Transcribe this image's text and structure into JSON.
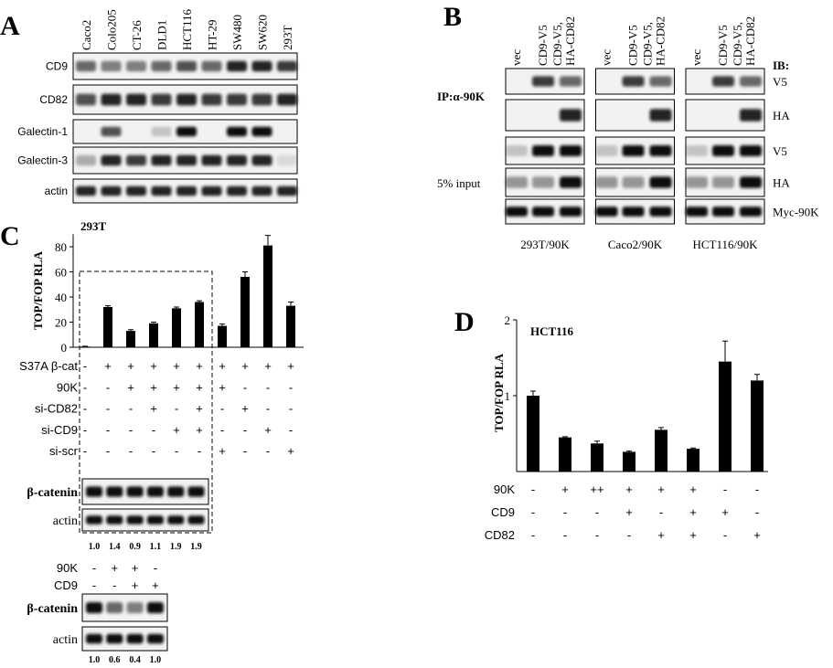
{
  "panel_a": {
    "label": "A",
    "lanes": [
      "Caco2",
      "Colo205",
      "CT-26",
      "DLD1",
      "HCT116",
      "HT-29",
      "SW480",
      "SW620",
      "293T"
    ],
    "rows": [
      "CD9",
      "CD82",
      "Galectin-1",
      "Galectin-3",
      "actin"
    ]
  },
  "panel_b": {
    "label": "B",
    "ib_label": "IB:",
    "ip_label": "IP:α-90K",
    "input_label": "5% input",
    "lanes": [
      [
        "vec"
      ],
      [
        "CD9-V5"
      ],
      [
        "CD9-V5,",
        "HA-CD82"
      ]
    ],
    "blots": [
      "V5",
      "HA",
      "V5",
      "HA",
      "Myc-90K"
    ],
    "groups": [
      "293T/90K",
      "Caco2/90K",
      "HCT116/90K"
    ]
  },
  "chart_data": [
    {
      "type": "bar",
      "panel_label": "C",
      "title": "293T",
      "y_label": "TOP/FOP RLA",
      "color": "#000000",
      "values": [
        0.5,
        32,
        13,
        19,
        31,
        36,
        17,
        56,
        81,
        33
      ],
      "errors": [
        0.3,
        1,
        1,
        1,
        1,
        1,
        1.5,
        4,
        8,
        3
      ],
      "ylim": [
        0,
        90
      ],
      "yticks": [
        0,
        20,
        40,
        60,
        80
      ],
      "conditions": [
        {
          "name": "S37A β-cat",
          "values": [
            "-",
            "+",
            "+",
            "+",
            "+",
            "+",
            "+",
            "+",
            "+",
            "+"
          ]
        },
        {
          "name": "90K",
          "values": [
            "-",
            "-",
            "+",
            "+",
            "+",
            "+",
            "+",
            "-",
            "-",
            "-"
          ]
        },
        {
          "name": "si-CD82",
          "values": [
            "-",
            "-",
            "-",
            "+",
            "-",
            "+",
            "-",
            "+",
            "-",
            "-"
          ]
        },
        {
          "name": "si-CD9",
          "values": [
            "-",
            "-",
            "-",
            "-",
            "+",
            "+",
            "-",
            "-",
            "+",
            "-"
          ]
        },
        {
          "name": "si-scr",
          "values": [
            "-",
            "-",
            "-",
            "-",
            "-",
            "-",
            "+",
            "-",
            "-",
            "+"
          ]
        }
      ]
    },
    {
      "type": "bar",
      "panel_label": "D",
      "title": "HCT116",
      "y_label": "TOP/FOP RLA",
      "color": "#000000",
      "values": [
        1.0,
        0.45,
        0.37,
        0.26,
        0.55,
        0.3,
        1.45,
        1.2
      ],
      "errors": [
        0.06,
        0.01,
        0.03,
        0.01,
        0.03,
        0.01,
        0.27,
        0.08
      ],
      "ylim": [
        0,
        2
      ],
      "yticks": [
        1,
        2
      ],
      "conditions": [
        {
          "name": "90K",
          "values": [
            "-",
            "+",
            "++",
            "+",
            "+",
            "+",
            "-",
            "-"
          ]
        },
        {
          "name": "CD9",
          "values": [
            "-",
            "-",
            "-",
            "+",
            "-",
            "+",
            "+",
            "-"
          ]
        },
        {
          "name": "CD82",
          "values": [
            "-",
            "-",
            "-",
            "-",
            "+",
            "+",
            "-",
            "+"
          ]
        }
      ]
    }
  ],
  "panel_c_blots": {
    "blot_1": {
      "rows": [
        "β-catenin",
        "actin"
      ],
      "ratios": [
        "1.0",
        "1.4",
        "0.9",
        "1.1",
        "1.9",
        "1.9"
      ]
    },
    "blot_2": {
      "conditions": [
        {
          "name": "90K",
          "values": [
            "-",
            "+",
            "+",
            "-"
          ]
        },
        {
          "name": "CD9",
          "values": [
            "-",
            "-",
            "+",
            "+"
          ]
        }
      ],
      "rows": [
        "β-catenin",
        "actin"
      ],
      "ratios": [
        "1.0",
        "0.6",
        "0.4",
        "1.0"
      ]
    }
  }
}
